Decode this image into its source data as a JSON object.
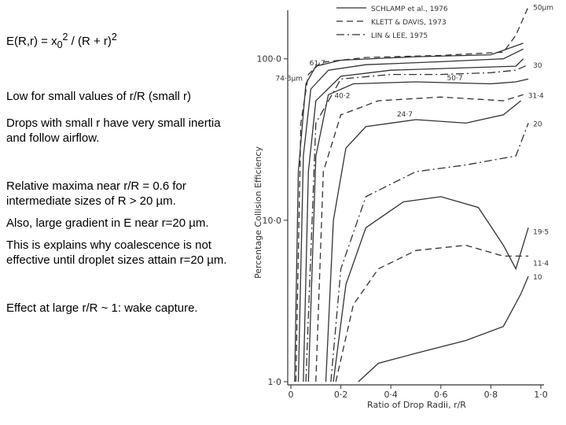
{
  "slide": {
    "formula": [
      "E(R,r) = x",
      "0",
      "2",
      " / (R + r)",
      "2"
    ],
    "paragraphs": [
      "Low for small values of r/R (small r)",
      "Drops with small r have very small inertia and follow airflow.",
      "Relative maxima near r/R = 0.6 for intermediate sizes of R > 20 µm.",
      "Also, large gradient in E near r=20 µm.",
      "This is explains why coalescence is not effective until droplet sizes attain r=20 µm.",
      "Effect at large r/R ~ 1:  wake capture."
    ]
  },
  "chart_data": {
    "type": "line",
    "x_label": "Ratio of Drop Radii, r/R",
    "y_label": "Percentage Collision Efficiency",
    "xlim": [
      0,
      1
    ],
    "ylim": [
      1,
      200
    ],
    "y_log": true,
    "xticks": [
      {
        "value": 0,
        "label": "0"
      },
      {
        "value": 0.2,
        "label": "0·2"
      },
      {
        "value": 0.4,
        "label": "0·4"
      },
      {
        "value": 0.6,
        "label": "0·6"
      },
      {
        "value": 0.8,
        "label": "0·8"
      },
      {
        "value": 1,
        "label": "1·0"
      }
    ],
    "yticks": [
      {
        "value": 1,
        "label": "1·0"
      },
      {
        "value": 10,
        "label": "10·0"
      },
      {
        "value": 100,
        "label": "100·0"
      }
    ],
    "legend": [
      {
        "label": "SCHLAMP et al., 1976",
        "style": "solid"
      },
      {
        "label": "KLETT & DAVIS, 1973",
        "style": "dashed"
      },
      {
        "label": "LIN & LEE, 1975",
        "style": "dashdot"
      }
    ],
    "color": "#333333",
    "series": [
      {
        "name": "50µm",
        "style": "dashed",
        "x": [
          0.02,
          0.04,
          0.07,
          0.12,
          0.3,
          0.6,
          0.85,
          0.9,
          0.95
        ],
        "values": [
          1,
          40,
          80,
          95,
          102,
          105,
          110,
          140,
          210
        ]
      },
      {
        "name": "74·3µm",
        "style": "solid",
        "x": [
          0.015,
          0.03,
          0.06,
          0.1,
          0.2,
          0.5,
          0.8,
          0.93
        ],
        "values": [
          1,
          20,
          70,
          90,
          98,
          103,
          106,
          125
        ]
      },
      {
        "name": "61·7",
        "style": "solid",
        "x": [
          0.03,
          0.05,
          0.08,
          0.15,
          0.3,
          0.6,
          0.85,
          0.93
        ],
        "values": [
          1,
          25,
          65,
          85,
          92,
          96,
          100,
          115
        ]
      },
      {
        "name": "50·7",
        "style": "solid",
        "x": [
          0.05,
          0.07,
          0.1,
          0.2,
          0.4,
          0.7,
          0.9,
          0.93
        ],
        "values": [
          1,
          20,
          55,
          78,
          85,
          88,
          90,
          100
        ]
      },
      {
        "name": "30",
        "style": "dashdot",
        "x": [
          0.06,
          0.1,
          0.2,
          0.4,
          0.6,
          0.8,
          0.9,
          0.95
        ],
        "values": [
          1,
          40,
          75,
          80,
          80,
          82,
          85,
          92
        ]
      },
      {
        "name": "40·2",
        "style": "solid",
        "x": [
          0.07,
          0.1,
          0.15,
          0.25,
          0.5,
          0.8,
          0.9,
          0.95
        ],
        "values": [
          1,
          25,
          60,
          70,
          72,
          70,
          72,
          75
        ]
      },
      {
        "name": "31·4",
        "style": "dashed",
        "x": [
          0.1,
          0.13,
          0.2,
          0.35,
          0.6,
          0.85,
          0.93
        ],
        "values": [
          1,
          20,
          45,
          55,
          58,
          55,
          60
        ]
      },
      {
        "name": "24·7",
        "style": "solid",
        "x": [
          0.14,
          0.17,
          0.22,
          0.3,
          0.5,
          0.7,
          0.85,
          0.92
        ],
        "values": [
          1,
          10,
          28,
          38,
          42,
          40,
          45,
          55
        ]
      },
      {
        "name": "20",
        "style": "dashdot",
        "x": [
          0.16,
          0.2,
          0.3,
          0.5,
          0.7,
          0.9,
          0.95
        ],
        "values": [
          1,
          5,
          14,
          20,
          22,
          25,
          40
        ]
      },
      {
        "name": "19·5",
        "style": "solid",
        "x": [
          0.17,
          0.22,
          0.3,
          0.45,
          0.6,
          0.75,
          0.85,
          0.9,
          0.95
        ],
        "values": [
          1,
          4,
          9,
          13,
          14,
          12,
          7,
          5,
          9
        ]
      },
      {
        "name": "11·4",
        "style": "dashed",
        "x": [
          0.18,
          0.25,
          0.35,
          0.5,
          0.7,
          0.85,
          0.95
        ],
        "values": [
          1,
          3,
          5,
          6.5,
          7,
          6,
          6
        ]
      },
      {
        "name": "10",
        "style": "solid",
        "x": [
          0.27,
          0.35,
          0.5,
          0.7,
          0.85,
          0.92,
          0.95
        ],
        "values": [
          1,
          1.3,
          1.5,
          1.8,
          2.2,
          3.5,
          4.5
        ]
      }
    ]
  }
}
